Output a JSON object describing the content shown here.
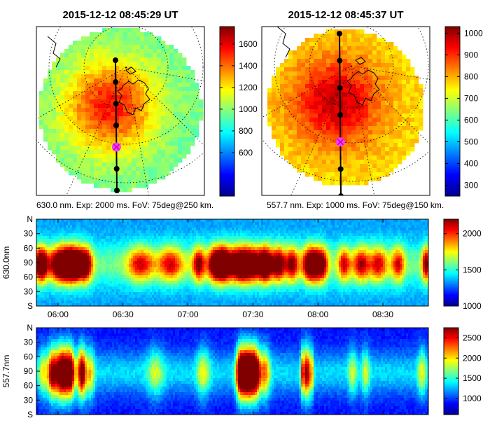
{
  "colors": {
    "sky": "#7a5fc0",
    "track": "#000000",
    "marker": "#ff33ff",
    "coast": "#000000"
  },
  "chart_data": [
    {
      "type": "heatmap",
      "subtype": "all-sky image",
      "title": "2015-12-12 08:45:29 UT",
      "caption": "630.0 nm. Exp: 2000 ms. FoV: 75deg@250 km.",
      "colorbar": {
        "range": [
          200,
          1760
        ],
        "ticks": [
          "600",
          "800",
          "1000",
          "1200",
          "1400",
          "1600"
        ]
      },
      "peak_value": 1550,
      "edge_value": 950
    },
    {
      "type": "heatmap",
      "subtype": "all-sky image",
      "title": "2015-12-12 08:45:37 UT",
      "caption": "557.7 nm. Exp: 1000 ms. FoV: 75deg@150 km.",
      "colorbar": {
        "range": [
          250,
          1030
        ],
        "ticks": [
          "300",
          "400",
          "500",
          "600",
          "700",
          "800",
          "900",
          "1000"
        ]
      },
      "peak_value": 980,
      "edge_value": 760
    },
    {
      "type": "heatmap",
      "subtype": "keogram",
      "ylabel": "630.0nm",
      "yticks": [
        "N",
        "30",
        "60",
        "90",
        "60",
        "30",
        "S"
      ],
      "xticks": [
        "06:00",
        "06:30",
        "07:00",
        "07:30",
        "08:00",
        "08:30"
      ],
      "time_range": [
        "05:50",
        "08:51"
      ],
      "colorbar": {
        "range": [
          1000,
          2200
        ],
        "ticks": [
          "1000",
          "1500",
          "2000"
        ]
      },
      "events": [
        {
          "time": "05:52",
          "intensity": 0.75,
          "width_min": 3
        },
        {
          "time": "06:02",
          "intensity": 0.9,
          "width_min": 6
        },
        {
          "time": "06:08",
          "intensity": 0.7,
          "width_min": 4
        },
        {
          "time": "06:13",
          "intensity": 0.6,
          "width_min": 3
        },
        {
          "time": "06:38",
          "intensity": 0.45,
          "width_min": 6
        },
        {
          "time": "06:52",
          "intensity": 0.45,
          "width_min": 6
        },
        {
          "time": "07:05",
          "intensity": 0.55,
          "width_min": 3
        },
        {
          "time": "07:12",
          "intensity": 0.55,
          "width_min": 3
        },
        {
          "time": "07:16",
          "intensity": 0.6,
          "width_min": 3
        },
        {
          "time": "07:26",
          "intensity": 0.95,
          "width_min": 10
        },
        {
          "time": "07:36",
          "intensity": 0.55,
          "width_min": 3
        },
        {
          "time": "07:42",
          "intensity": 0.6,
          "width_min": 3
        },
        {
          "time": "07:48",
          "intensity": 0.55,
          "width_min": 3
        },
        {
          "time": "07:57",
          "intensity": 0.85,
          "width_min": 4
        },
        {
          "time": "08:02",
          "intensity": 0.5,
          "width_min": 3
        },
        {
          "time": "08:12",
          "intensity": 0.45,
          "width_min": 3
        },
        {
          "time": "08:20",
          "intensity": 0.5,
          "width_min": 4
        },
        {
          "time": "08:28",
          "intensity": 0.45,
          "width_min": 4
        },
        {
          "time": "08:37",
          "intensity": 0.45,
          "width_min": 3
        },
        {
          "time": "08:50",
          "intensity": 0.6,
          "width_min": 2
        }
      ]
    },
    {
      "type": "heatmap",
      "subtype": "keogram",
      "ylabel": "557.7nm",
      "yticks": [
        "N",
        "30",
        "60",
        "90",
        "60",
        "30",
        "S"
      ],
      "xticks": [
        "06:00",
        "06:30",
        "07:00",
        "07:30",
        "08:00",
        "08:30"
      ],
      "time_range": [
        "05:50",
        "08:51"
      ],
      "colorbar": {
        "range": [
          600,
          2750
        ],
        "ticks": [
          "1000",
          "1500",
          "2000",
          "2500"
        ]
      },
      "events": [
        {
          "time": "05:53",
          "intensity": 0.3,
          "width_min": 2
        },
        {
          "time": "05:57",
          "intensity": 0.5,
          "width_min": 2
        },
        {
          "time": "06:02",
          "intensity": 0.95,
          "width_min": 4
        },
        {
          "time": "06:06",
          "intensity": 0.5,
          "width_min": 2
        },
        {
          "time": "06:11",
          "intensity": 0.75,
          "width_min": 2
        },
        {
          "time": "06:15",
          "intensity": 0.35,
          "width_min": 2
        },
        {
          "time": "06:45",
          "intensity": 0.25,
          "width_min": 4
        },
        {
          "time": "07:07",
          "intensity": 0.3,
          "width_min": 3
        },
        {
          "time": "07:24",
          "intensity": 0.65,
          "width_min": 2
        },
        {
          "time": "07:27",
          "intensity": 0.95,
          "width_min": 3
        },
        {
          "time": "07:31",
          "intensity": 0.85,
          "width_min": 3
        },
        {
          "time": "07:36",
          "intensity": 0.4,
          "width_min": 2
        },
        {
          "time": "07:53",
          "intensity": 0.6,
          "width_min": 1
        },
        {
          "time": "07:55",
          "intensity": 0.75,
          "width_min": 1
        },
        {
          "time": "07:57",
          "intensity": 0.45,
          "width_min": 1
        },
        {
          "time": "08:16",
          "intensity": 0.25,
          "width_min": 2
        },
        {
          "time": "08:22",
          "intensity": 0.25,
          "width_min": 2
        },
        {
          "time": "08:48",
          "intensity": 0.3,
          "width_min": 2
        }
      ]
    }
  ]
}
